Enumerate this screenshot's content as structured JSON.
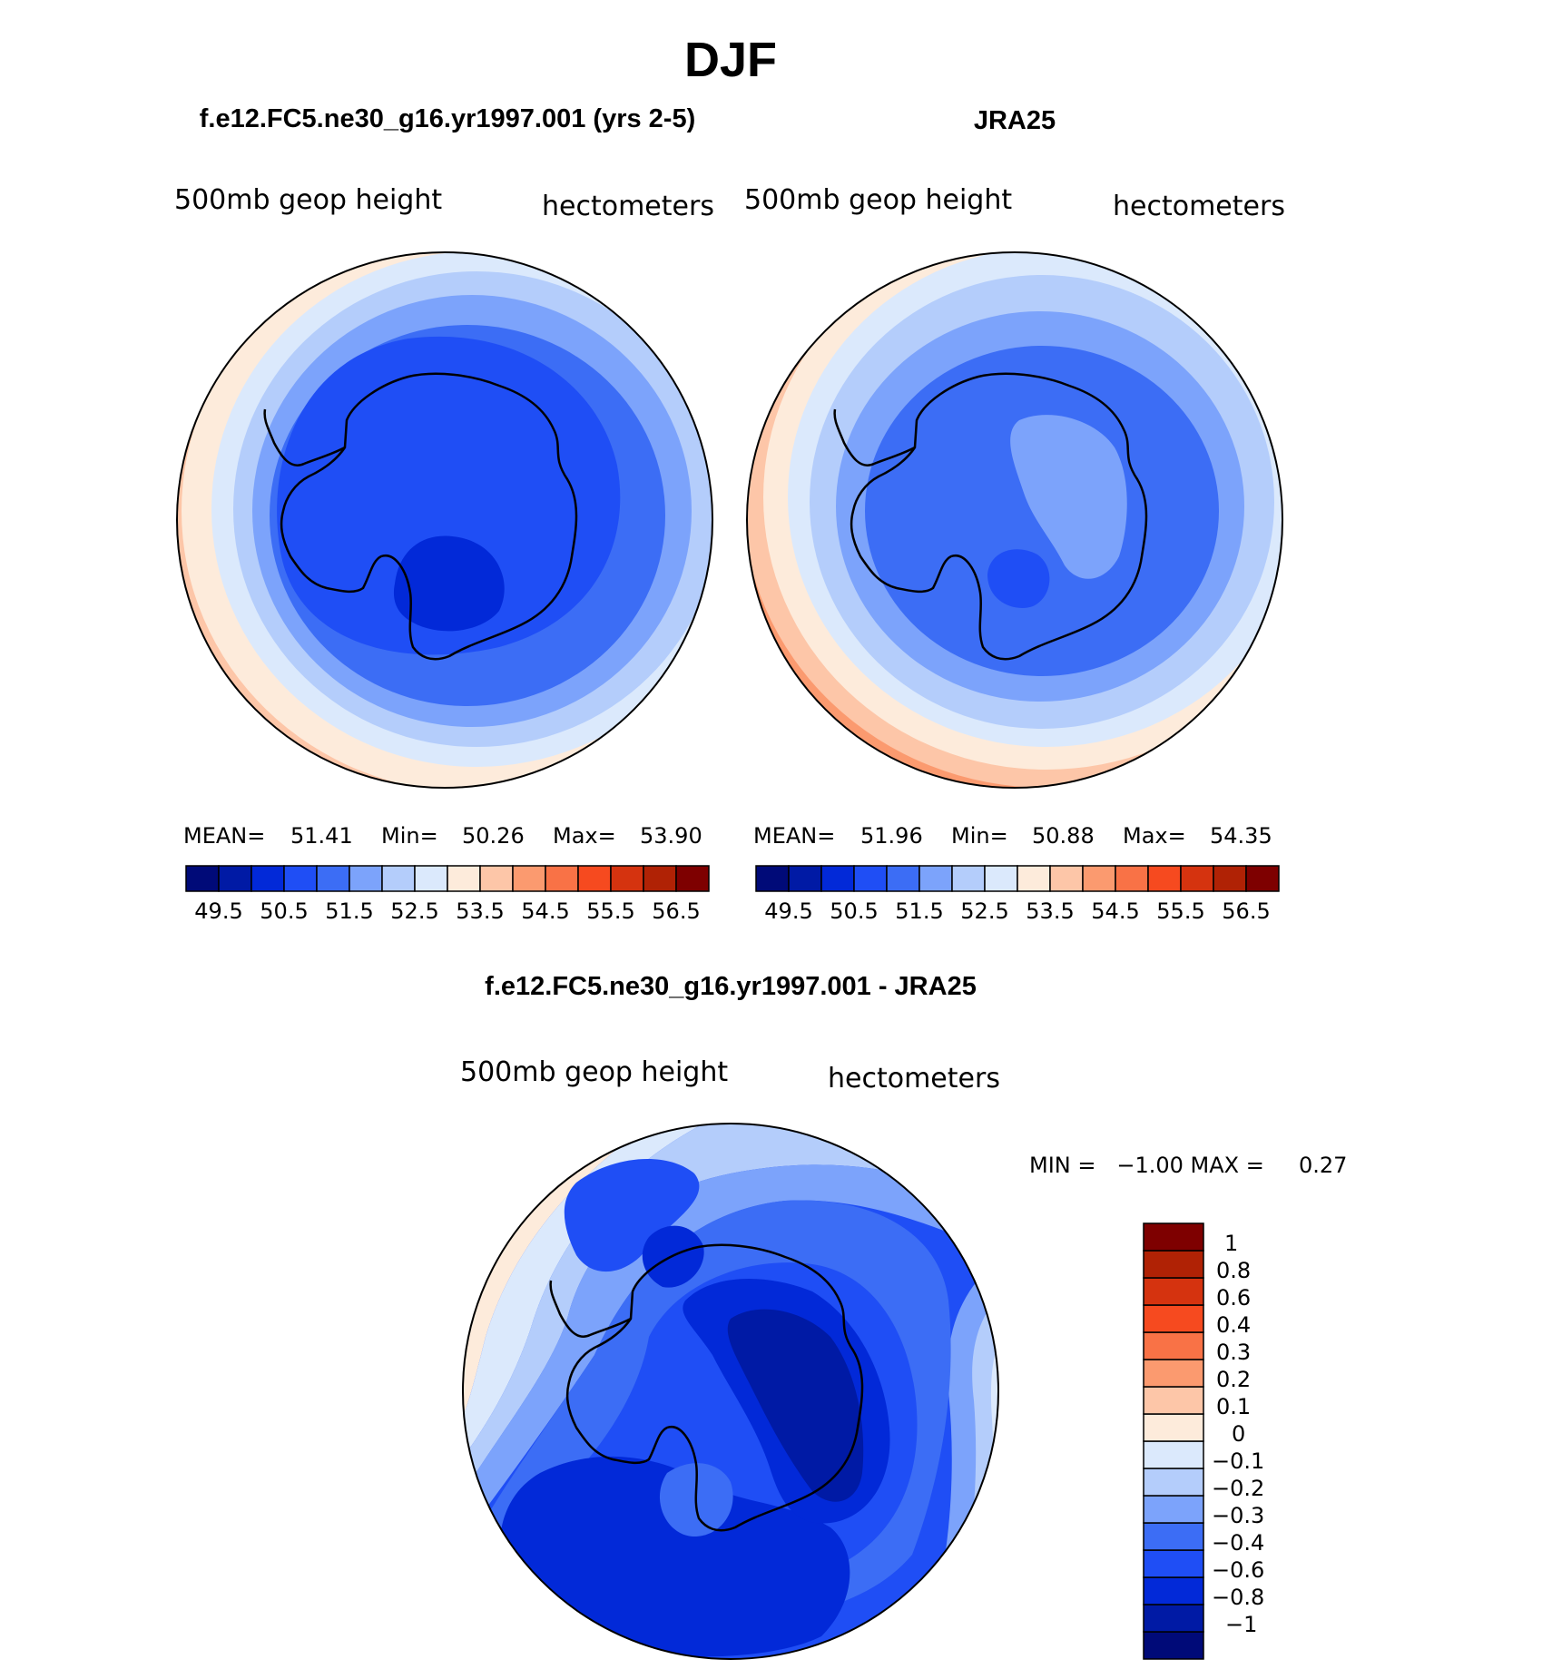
{
  "figure": {
    "title": "DJF",
    "colors": {
      "levels_ramp": [
        "#000a78",
        "#001aa5",
        "#0229d8",
        "#1f4ef5",
        "#3c6df5",
        "#7ca3fb",
        "#b4cdfb",
        "#dbe9fc",
        "#fdebdb",
        "#fdc6a8",
        "#fb9a6f",
        "#f97246",
        "#f64a1f",
        "#d5330f",
        "#b02205",
        "#7e0000"
      ],
      "diff_ramp": [
        "#000a78",
        "#001aa5",
        "#0229d8",
        "#1f4ef5",
        "#3c6df5",
        "#7ca3fb",
        "#b4cdfb",
        "#dbe9fc",
        "#fdebdb",
        "#fdc6a8",
        "#fb9a6f",
        "#f97246",
        "#f64a1f",
        "#d5330f",
        "#b02205",
        "#7e0000"
      ],
      "coastline": "#000000"
    }
  },
  "panels": [
    {
      "header": "f.e12.FC5.ne30_g16.yr1997.001 (yrs 2-5)",
      "left_label": "500mb geop height",
      "right_label": "hectometers",
      "stats": {
        "mean_label": "MEAN=",
        "mean": "51.41",
        "min_label": "Min=",
        "min": "50.26",
        "max_label": "Max=",
        "max": "53.90"
      },
      "colorbar_ticks": [
        "49.5",
        "50.5",
        "51.5",
        "52.5",
        "53.5",
        "54.5",
        "55.5",
        "56.5"
      ]
    },
    {
      "header": "JRA25",
      "left_label": "500mb geop height",
      "right_label": "hectometers",
      "stats": {
        "mean_label": "MEAN=",
        "mean": "51.96",
        "min_label": "Min=",
        "min": "50.88",
        "max_label": "Max=",
        "max": "54.35"
      },
      "colorbar_ticks": [
        "49.5",
        "50.5",
        "51.5",
        "52.5",
        "53.5",
        "54.5",
        "55.5",
        "56.5"
      ]
    }
  ],
  "diff_panel": {
    "header": "f.e12.FC5.ne30_g16.yr1997.001 - JRA25",
    "left_label": "500mb geop height",
    "right_label": "hectometers",
    "stats_text": "MIN =   −1.00 MAX =     0.27",
    "colorbar_labels": [
      "1",
      "0.8",
      "0.6",
      "0.4",
      "0.3",
      "0.2",
      "0.1",
      "0",
      "−0.1",
      "−0.2",
      "−0.3",
      "−0.4",
      "−0.6",
      "−0.8",
      "−1"
    ]
  }
}
